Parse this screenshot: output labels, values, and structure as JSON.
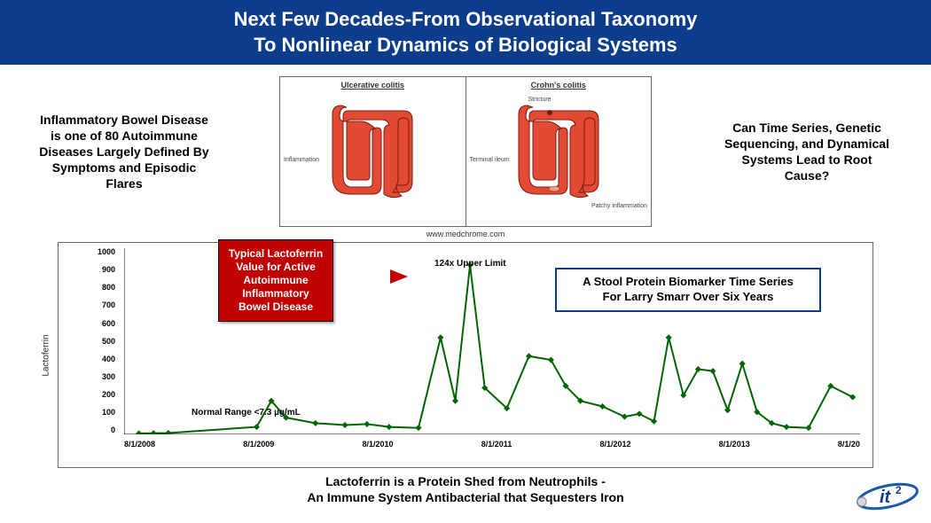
{
  "header": {
    "line1": "Next Few Decades-From Observational Taxonomy",
    "line2": "To Nonlinear Dynamics of Biological Systems",
    "bg": "#0b3d8c",
    "fg": "#ffffff"
  },
  "left_text": "Inflammatory Bowel Disease is one of 80 Autoimmune Diseases Largely Defined By Symptoms and Episodic Flares",
  "right_text": "Can Time Series, Genetic Sequencing, and Dynamical Systems Lead to Root Cause?",
  "med_diagram": {
    "left_label": "Ulcerative colitis",
    "right_label": "Crohn's colitis",
    "colon_color": "#e24a33",
    "colon_outline": "#7a1a10",
    "ann_left": "Inflammation",
    "ann_right_top": "Stricture",
    "ann_right_mid": "Terminal ileum",
    "ann_right_bot": "Patchy inflammation"
  },
  "source_credit": "www.medchrome.com",
  "chart": {
    "type": "line",
    "y_label": "Lactoferrin",
    "y_ticks": [
      0,
      100,
      200,
      300,
      400,
      500,
      600,
      700,
      800,
      900,
      1000
    ],
    "ylim": [
      0,
      1000
    ],
    "x_ticks": [
      "8/1/2008",
      "8/1/2009",
      "8/1/2010",
      "8/1/2011",
      "8/1/2012",
      "8/1/2013",
      "8/1/20"
    ],
    "series_color": "#006400",
    "marker_fill": "#006400",
    "line_width": 2,
    "marker_size": 5,
    "background": "#ffffff",
    "grid": false,
    "data": [
      {
        "xf": 0.02,
        "y": 5
      },
      {
        "xf": 0.04,
        "y": 6
      },
      {
        "xf": 0.06,
        "y": 7
      },
      {
        "xf": 0.18,
        "y": 40
      },
      {
        "xf": 0.2,
        "y": 180
      },
      {
        "xf": 0.22,
        "y": 90
      },
      {
        "xf": 0.26,
        "y": 60
      },
      {
        "xf": 0.3,
        "y": 50
      },
      {
        "xf": 0.33,
        "y": 55
      },
      {
        "xf": 0.36,
        "y": 40
      },
      {
        "xf": 0.4,
        "y": 35
      },
      {
        "xf": 0.43,
        "y": 520
      },
      {
        "xf": 0.45,
        "y": 180
      },
      {
        "xf": 0.47,
        "y": 910
      },
      {
        "xf": 0.49,
        "y": 250
      },
      {
        "xf": 0.52,
        "y": 140
      },
      {
        "xf": 0.55,
        "y": 420
      },
      {
        "xf": 0.58,
        "y": 400
      },
      {
        "xf": 0.6,
        "y": 260
      },
      {
        "xf": 0.62,
        "y": 180
      },
      {
        "xf": 0.65,
        "y": 150
      },
      {
        "xf": 0.68,
        "y": 95
      },
      {
        "xf": 0.7,
        "y": 110
      },
      {
        "xf": 0.72,
        "y": 70
      },
      {
        "xf": 0.74,
        "y": 520
      },
      {
        "xf": 0.76,
        "y": 210
      },
      {
        "xf": 0.78,
        "y": 350
      },
      {
        "xf": 0.8,
        "y": 340
      },
      {
        "xf": 0.82,
        "y": 130
      },
      {
        "xf": 0.84,
        "y": 380
      },
      {
        "xf": 0.86,
        "y": 120
      },
      {
        "xf": 0.88,
        "y": 60
      },
      {
        "xf": 0.9,
        "y": 40
      },
      {
        "xf": 0.93,
        "y": 35
      },
      {
        "xf": 0.96,
        "y": 260
      },
      {
        "xf": 0.99,
        "y": 200
      }
    ]
  },
  "red_box": {
    "text": "Typical Lactoferrin Value for Active Autoimmune Inflammatory Bowel Disease",
    "bg": "#c00000",
    "fg": "#ffffff"
  },
  "upper_limit_text": "124x Upper Limit",
  "blue_box": {
    "line1": "A Stool Protein Biomarker Time Series",
    "line2": "For Larry Smarr Over Six Years",
    "border": "#0b3d8c"
  },
  "normal_range_text": "Normal Range <7.3 µg/mL",
  "caption": {
    "line1": "Lactoferrin is a Protein Shed from Neutrophils -",
    "line2": "An Immune System Antibacterial that Sequesters Iron"
  },
  "logo": {
    "text": "it",
    "sup": "2",
    "ellipse": "#1a5aa8",
    "ball": "#d9d9d9"
  }
}
